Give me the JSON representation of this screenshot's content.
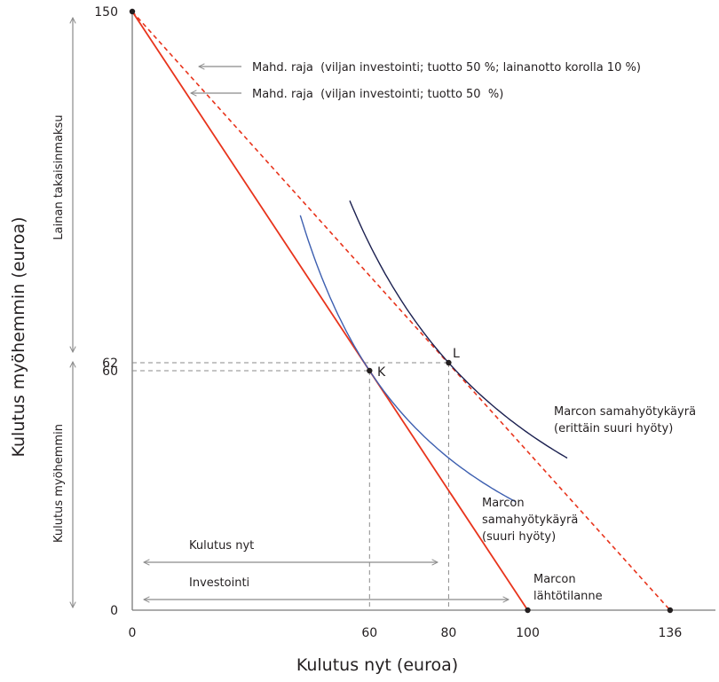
{
  "chart_data": {
    "type": "line",
    "xlabel": "Kulutus nyt (euroa)",
    "ylabel": "Kulutus myöhemmin (euroa)",
    "xlim": [
      0,
      150
    ],
    "ylim": [
      0,
      150
    ],
    "x_ticks": [
      0,
      60,
      80,
      100,
      136
    ],
    "y_ticks": [
      0,
      60,
      62,
      150
    ],
    "colors": {
      "feasible": "#e8341c",
      "ic_high": "#3d5fb0",
      "ic_very_high": "#1b2050",
      "guide": "#8a8a8a",
      "axis": "#7a7a7a",
      "point": "#231f20"
    },
    "series": [
      {
        "name": "Mahd. raja (viljan investointi; tuotto 50 %)",
        "style": "solid",
        "points": [
          [
            0,
            150
          ],
          [
            100,
            0
          ]
        ]
      },
      {
        "name": "Mahd. raja (viljan investointi; tuotto 50 %; lainanotto korolla 10 %)",
        "style": "dashed",
        "points": [
          [
            0,
            150
          ],
          [
            136,
            0
          ]
        ]
      },
      {
        "name": "Marcon samahyötykäyrä (suuri hyöty)",
        "style": "curve",
        "tangent_point": [
          60,
          60
        ],
        "x_range": [
          42.5,
          97
        ]
      },
      {
        "name": "Marcon samahyötykäyrä (erittäin suuri hyöty)",
        "style": "curve",
        "tangent_point": [
          80,
          62
        ],
        "x_range": [
          55,
          110
        ]
      }
    ],
    "points": [
      {
        "id": "top",
        "x": 0,
        "y": 150,
        "label": ""
      },
      {
        "id": "K",
        "x": 60,
        "y": 60,
        "label": "K"
      },
      {
        "id": "L",
        "x": 80,
        "y": 62,
        "label": "L"
      },
      {
        "id": "start",
        "x": 100,
        "y": 0,
        "label": ""
      },
      {
        "id": "end136",
        "x": 136,
        "y": 0,
        "label": ""
      }
    ],
    "annotations": {
      "frontier_borrowing": "Mahd. raja  (viljan investointi; tuotto 50 %; lainanotto korolla 10 %)",
      "frontier_investment": "Mahd. raja  (viljan investointi; tuotto 50  %)",
      "ic_very_high_line1": "Marcon samahyötykäyrä",
      "ic_very_high_line2": "(erittäin suuri hyöty)",
      "ic_high_line1": "Marcon",
      "ic_high_line2": "samahyötykäyrä",
      "ic_high_line3": "(suuri hyöty)",
      "start_line1": "Marcon",
      "start_line2": "lähtötilanne",
      "consume_now": "Kulutus nyt",
      "investment": "Investointi",
      "loan_repayment": "Lainan takaisinmaksu",
      "consume_later": "Kulutus myöhemmin"
    }
  }
}
